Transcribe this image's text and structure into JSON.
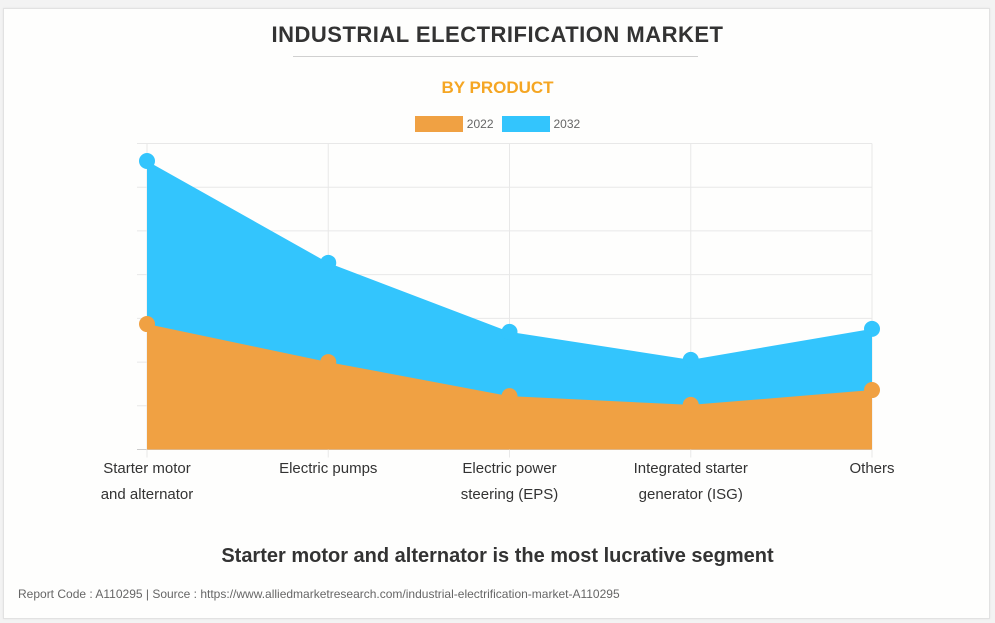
{
  "header": {
    "title": "INDUSTRIAL ELECTRIFICATION MARKET",
    "subtitle": "BY PRODUCT"
  },
  "headline": "Starter motor and alternator is the most lucrative segment",
  "footer": "Report Code : A110295  |  Source : https://www.alliedmarketresearch.com/industrial-electrification-market-A110295",
  "chart_data": {
    "type": "area",
    "title": "INDUSTRIAL ELECTRIFICATION MARKET",
    "subtitle": "BY PRODUCT",
    "xlabel": "",
    "ylabel": "",
    "y_units": "relative (gridline intervals; no y-axis labels shown)",
    "ylim": [
      0,
      7
    ],
    "grid": true,
    "legend_position": "top-center",
    "categories": [
      "Starter motor and alternator",
      "Electric pumps",
      "Electric power steering (EPS)",
      "Integrated starter generator (ISG)",
      "Others"
    ],
    "category_lines": [
      [
        "Starter motor",
        "and alternator"
      ],
      [
        "Electric pumps"
      ],
      [
        "Electric power",
        "steering (EPS)"
      ],
      [
        "Integrated starter",
        "generator (ISG)"
      ],
      [
        "Others"
      ]
    ],
    "series": [
      {
        "name": "2022",
        "color": "#f0a143",
        "values": [
          2.87,
          2.0,
          1.22,
          1.02,
          1.36
        ]
      },
      {
        "name": "2032",
        "color": "#33c5fd",
        "values": [
          6.6,
          4.27,
          2.69,
          2.05,
          2.76
        ]
      }
    ]
  }
}
